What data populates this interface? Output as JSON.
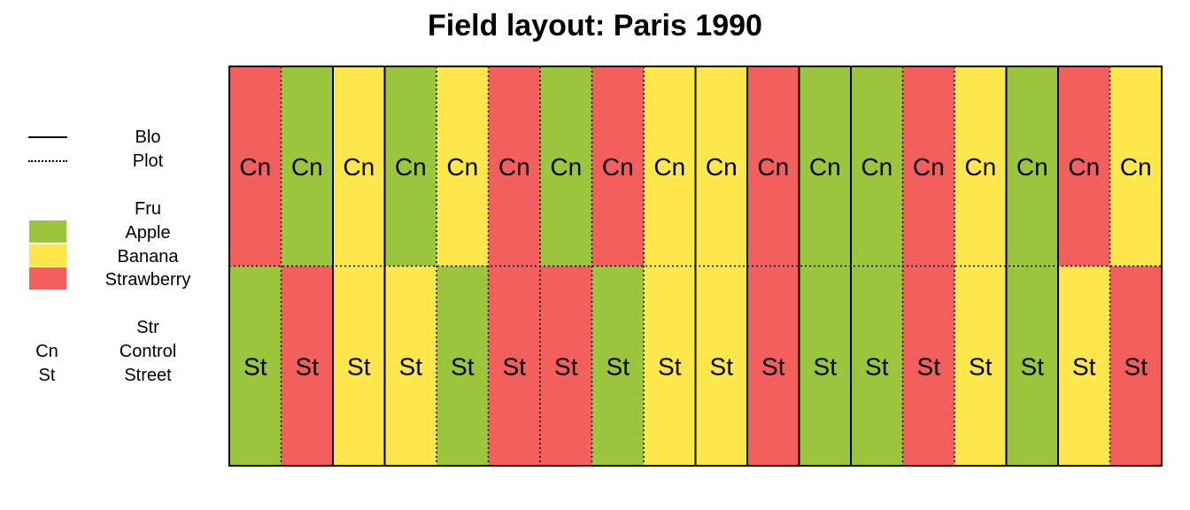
{
  "title": "Field layout: Paris 1990",
  "legend": {
    "lines": {
      "block": "Blo",
      "plot": "Plot"
    },
    "fruit": {
      "header": "Fru",
      "items": [
        {
          "label": "Apple",
          "color": "#9bc53d"
        },
        {
          "label": "Banana",
          "color": "#fde74c"
        },
        {
          "label": "Strawberry",
          "color": "#f25f5c"
        }
      ]
    },
    "strain": {
      "header": "Str",
      "items": [
        {
          "code": "Cn",
          "label": "Control"
        },
        {
          "code": "St",
          "label": "Street"
        }
      ]
    }
  },
  "field": {
    "columns": 18,
    "rows": [
      {
        "strain": "Cn",
        "fruit": [
          "Strawberry",
          "Apple",
          "Banana",
          "Apple",
          "Banana",
          "Strawberry",
          "Apple",
          "Strawberry",
          "Banana",
          "Banana",
          "Strawberry",
          "Apple",
          "Apple",
          "Strawberry",
          "Banana",
          "Apple",
          "Strawberry",
          "Banana"
        ]
      },
      {
        "strain": "St",
        "fruit": [
          "Apple",
          "Strawberry",
          "Banana",
          "Banana",
          "Apple",
          "Strawberry",
          "Strawberry",
          "Apple",
          "Banana",
          "Banana",
          "Strawberry",
          "Apple",
          "Apple",
          "Strawberry",
          "Banana",
          "Apple",
          "Banana",
          "Strawberry"
        ]
      }
    ],
    "block_boundaries_after_column": [
      2,
      3,
      9,
      10,
      11,
      12,
      15,
      16
    ]
  }
}
